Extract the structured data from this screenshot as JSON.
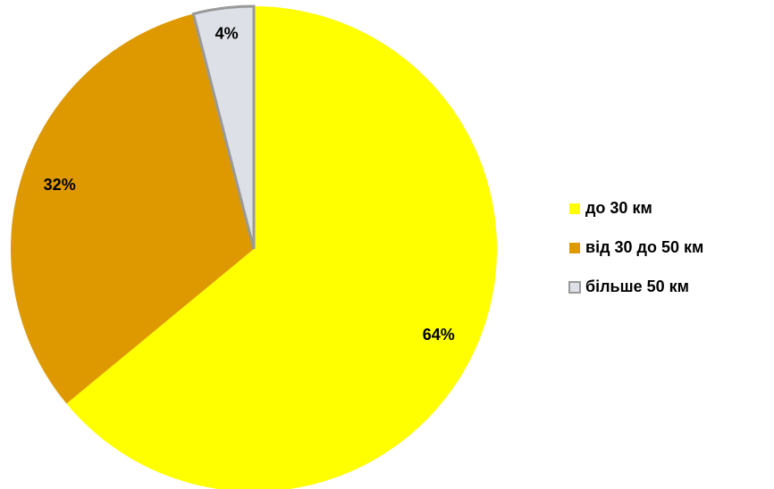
{
  "chart_data": {
    "type": "pie",
    "categories": [
      "до 30 км",
      "від 30 до 50 км",
      "більше 50 км"
    ],
    "values": [
      64,
      32,
      4
    ],
    "value_labels": [
      "64%",
      "32%",
      "4%"
    ],
    "colors": [
      "#ffff00",
      "#de9900",
      "#dde0e6"
    ],
    "legend": "right"
  }
}
